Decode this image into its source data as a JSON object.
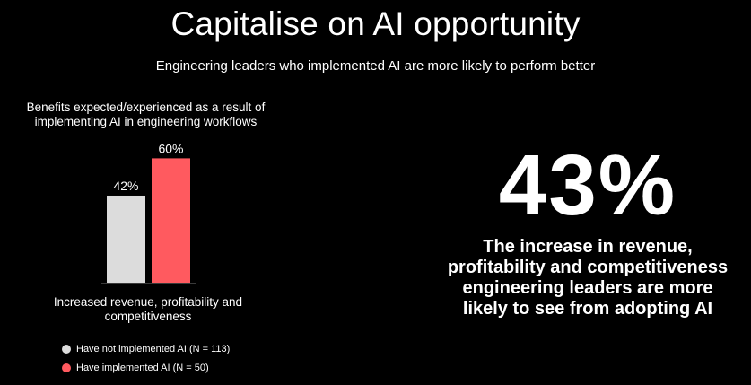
{
  "header": {
    "title": "Capitalise on AI opportunity",
    "subtitle": "Engineering leaders who implemented AI are more likely to perform better"
  },
  "chart_data": {
    "type": "bar",
    "title": "Benefits expected/experienced as a result of implementing AI in engineering workflows",
    "categories": [
      "Increased revenue, profitability and competitiveness"
    ],
    "series": [
      {
        "name": "Have not implemented AI (N = 113)",
        "values": [
          42
        ],
        "color": "#dcdcdc",
        "label": "42%"
      },
      {
        "name": "Have implemented AI (N = 50)",
        "values": [
          60
        ],
        "color": "#ff5a5f",
        "label": "60%"
      }
    ],
    "xlabel": "",
    "ylabel": "",
    "ylim": [
      0,
      100
    ],
    "grid": false,
    "legend": "bottom-left"
  },
  "highlight": {
    "value": "43%",
    "caption": "The increase in revenue, profitability and competitiveness engineering leaders are more likely to see from adopting AI"
  }
}
